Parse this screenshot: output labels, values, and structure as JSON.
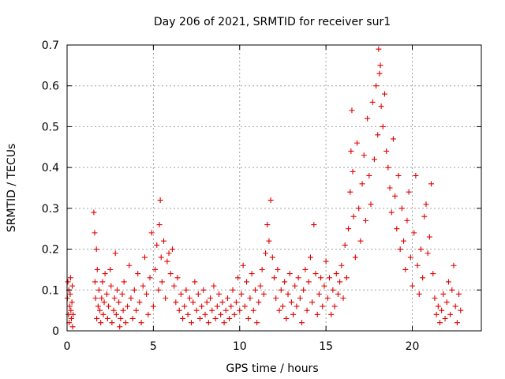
{
  "chart_data": {
    "type": "scatter",
    "title": "Day 206 of 2021, SRMTID for receiver sur1",
    "xlabel": "GPS time / hours",
    "ylabel": "SRMTID / TECUs",
    "xlim": [
      0,
      24
    ],
    "ylim": [
      0,
      0.7
    ],
    "xticks": [
      0,
      5,
      10,
      15,
      20
    ],
    "xtick_labels": [
      "0",
      "5",
      "10",
      "15",
      "20"
    ],
    "yticks": [
      0,
      0.1,
      0.2,
      0.3,
      0.4,
      0.5,
      0.6,
      0.7
    ],
    "ytick_labels": [
      "0",
      "0.1",
      "0.2",
      "0.3",
      "0.4",
      "0.5",
      "0.6",
      "0.7"
    ],
    "grid": true,
    "marker": "plus",
    "series": [
      {
        "name": "sur1",
        "color": "#e00000",
        "points": [
          [
            0.02,
            0.08
          ],
          [
            0.05,
            0.12
          ],
          [
            0.08,
            0.04
          ],
          [
            0.1,
            0.1
          ],
          [
            0.12,
            0.02
          ],
          [
            0.15,
            0.06
          ],
          [
            0.18,
            0.09
          ],
          [
            0.2,
            0.13
          ],
          [
            0.22,
            0.05
          ],
          [
            0.25,
            0.03
          ],
          [
            0.28,
            0.07
          ],
          [
            0.3,
            0.11
          ],
          [
            0.32,
            0.01
          ],
          [
            0.35,
            0.04
          ],
          [
            1.55,
            0.29
          ],
          [
            1.6,
            0.24
          ],
          [
            1.62,
            0.12
          ],
          [
            1.65,
            0.08
          ],
          [
            1.7,
            0.2
          ],
          [
            1.72,
            0.03
          ],
          [
            1.75,
            0.15
          ],
          [
            1.8,
            0.06
          ],
          [
            1.85,
            0.1
          ],
          [
            1.9,
            0.05
          ],
          [
            1.95,
            0.02
          ],
          [
            2.0,
            0.08
          ],
          [
            2.05,
            0.12
          ],
          [
            2.1,
            0.04
          ],
          [
            2.15,
            0.07
          ],
          [
            2.2,
            0.14
          ],
          [
            2.3,
            0.09
          ],
          [
            2.35,
            0.03
          ],
          [
            2.4,
            0.06
          ],
          [
            2.5,
            0.15
          ],
          [
            2.55,
            0.11
          ],
          [
            2.6,
            0.02
          ],
          [
            2.7,
            0.05
          ],
          [
            2.75,
            0.08
          ],
          [
            2.8,
            0.19
          ],
          [
            2.85,
            0.04
          ],
          [
            2.9,
            0.1
          ],
          [
            3.0,
            0.07
          ],
          [
            3.05,
            0.01
          ],
          [
            3.1,
            0.03
          ],
          [
            3.2,
            0.09
          ],
          [
            3.25,
            0.05
          ],
          [
            3.3,
            0.12
          ],
          [
            3.4,
            0.02
          ],
          [
            3.5,
            0.06
          ],
          [
            3.6,
            0.16
          ],
          [
            3.7,
            0.08
          ],
          [
            3.8,
            0.03
          ],
          [
            3.9,
            0.1
          ],
          [
            4.0,
            0.05
          ],
          [
            4.1,
            0.14
          ],
          [
            4.2,
            0.07
          ],
          [
            4.3,
            0.02
          ],
          [
            4.4,
            0.11
          ],
          [
            4.5,
            0.18
          ],
          [
            4.6,
            0.09
          ],
          [
            4.7,
            0.04
          ],
          [
            4.8,
            0.13
          ],
          [
            4.9,
            0.24
          ],
          [
            5.0,
            0.06
          ],
          [
            5.1,
            0.15
          ],
          [
            5.2,
            0.21
          ],
          [
            5.3,
            0.1
          ],
          [
            5.35,
            0.26
          ],
          [
            5.4,
            0.32
          ],
          [
            5.45,
            0.18
          ],
          [
            5.5,
            0.12
          ],
          [
            5.6,
            0.22
          ],
          [
            5.7,
            0.08
          ],
          [
            5.8,
            0.17
          ],
          [
            5.9,
            0.19
          ],
          [
            6.0,
            0.14
          ],
          [
            6.1,
            0.2
          ],
          [
            6.2,
            0.11
          ],
          [
            6.3,
            0.07
          ],
          [
            6.4,
            0.13
          ],
          [
            6.5,
            0.05
          ],
          [
            6.6,
            0.09
          ],
          [
            6.7,
            0.03
          ],
          [
            6.8,
            0.06
          ],
          [
            6.9,
            0.1
          ],
          [
            7.0,
            0.04
          ],
          [
            7.1,
            0.08
          ],
          [
            7.2,
            0.02
          ],
          [
            7.3,
            0.07
          ],
          [
            7.4,
            0.12
          ],
          [
            7.5,
            0.05
          ],
          [
            7.6,
            0.09
          ],
          [
            7.7,
            0.03
          ],
          [
            7.8,
            0.06
          ],
          [
            7.9,
            0.1
          ],
          [
            8.0,
            0.04
          ],
          [
            8.1,
            0.07
          ],
          [
            8.2,
            0.02
          ],
          [
            8.3,
            0.08
          ],
          [
            8.4,
            0.05
          ],
          [
            8.5,
            0.11
          ],
          [
            8.6,
            0.03
          ],
          [
            8.7,
            0.06
          ],
          [
            8.8,
            0.09
          ],
          [
            8.9,
            0.04
          ],
          [
            9.0,
            0.07
          ],
          [
            9.1,
            0.02
          ],
          [
            9.2,
            0.05
          ],
          [
            9.3,
            0.08
          ],
          [
            9.4,
            0.03
          ],
          [
            9.5,
            0.06
          ],
          [
            9.6,
            0.1
          ],
          [
            9.7,
            0.04
          ],
          [
            9.8,
            0.07
          ],
          [
            9.9,
            0.13
          ],
          [
            10.0,
            0.05
          ],
          [
            10.1,
            0.09
          ],
          [
            10.2,
            0.16
          ],
          [
            10.3,
            0.06
          ],
          [
            10.4,
            0.12
          ],
          [
            10.5,
            0.03
          ],
          [
            10.6,
            0.08
          ],
          [
            10.7,
            0.14
          ],
          [
            10.8,
            0.05
          ],
          [
            10.9,
            0.1
          ],
          [
            11.0,
            0.02
          ],
          [
            11.1,
            0.07
          ],
          [
            11.2,
            0.11
          ],
          [
            11.3,
            0.15
          ],
          [
            11.4,
            0.09
          ],
          [
            11.5,
            0.19
          ],
          [
            11.6,
            0.26
          ],
          [
            11.7,
            0.22
          ],
          [
            11.8,
            0.32
          ],
          [
            11.9,
            0.18
          ],
          [
            12.0,
            0.13
          ],
          [
            12.1,
            0.08
          ],
          [
            12.2,
            0.15
          ],
          [
            12.3,
            0.05
          ],
          [
            12.4,
            0.1
          ],
          [
            12.5,
            0.06
          ],
          [
            12.6,
            0.12
          ],
          [
            12.7,
            0.03
          ],
          [
            12.8,
            0.09
          ],
          [
            12.9,
            0.14
          ],
          [
            13.0,
            0.07
          ],
          [
            13.1,
            0.04
          ],
          [
            13.2,
            0.11
          ],
          [
            13.3,
            0.06
          ],
          [
            13.4,
            0.13
          ],
          [
            13.5,
            0.08
          ],
          [
            13.6,
            0.02
          ],
          [
            13.7,
            0.1
          ],
          [
            13.8,
            0.15
          ],
          [
            13.9,
            0.05
          ],
          [
            14.0,
            0.12
          ],
          [
            14.1,
            0.18
          ],
          [
            14.2,
            0.07
          ],
          [
            14.3,
            0.26
          ],
          [
            14.4,
            0.14
          ],
          [
            14.5,
            0.04
          ],
          [
            14.6,
            0.09
          ],
          [
            14.7,
            0.13
          ],
          [
            14.8,
            0.06
          ],
          [
            14.9,
            0.11
          ],
          [
            15.0,
            0.17
          ],
          [
            15.1,
            0.08
          ],
          [
            15.2,
            0.13
          ],
          [
            15.3,
            0.04
          ],
          [
            15.4,
            0.1
          ],
          [
            15.5,
            0.06
          ],
          [
            15.6,
            0.14
          ],
          [
            15.7,
            0.09
          ],
          [
            15.8,
            0.12
          ],
          [
            15.9,
            0.16
          ],
          [
            16.0,
            0.08
          ],
          [
            16.1,
            0.21
          ],
          [
            16.2,
            0.13
          ],
          [
            16.3,
            0.25
          ],
          [
            16.4,
            0.34
          ],
          [
            16.45,
            0.44
          ],
          [
            16.5,
            0.54
          ],
          [
            16.55,
            0.39
          ],
          [
            16.6,
            0.28
          ],
          [
            16.7,
            0.18
          ],
          [
            16.8,
            0.46
          ],
          [
            16.9,
            0.3
          ],
          [
            17.0,
            0.22
          ],
          [
            17.1,
            0.36
          ],
          [
            17.2,
            0.43
          ],
          [
            17.3,
            0.27
          ],
          [
            17.4,
            0.52
          ],
          [
            17.5,
            0.38
          ],
          [
            17.6,
            0.31
          ],
          [
            17.7,
            0.56
          ],
          [
            17.8,
            0.42
          ],
          [
            17.9,
            0.6
          ],
          [
            18.0,
            0.48
          ],
          [
            18.05,
            0.69
          ],
          [
            18.1,
            0.63
          ],
          [
            18.15,
            0.65
          ],
          [
            18.2,
            0.55
          ],
          [
            18.3,
            0.5
          ],
          [
            18.4,
            0.58
          ],
          [
            18.5,
            0.44
          ],
          [
            18.6,
            0.4
          ],
          [
            18.7,
            0.35
          ],
          [
            18.8,
            0.29
          ],
          [
            18.9,
            0.47
          ],
          [
            19.0,
            0.33
          ],
          [
            19.1,
            0.25
          ],
          [
            19.2,
            0.38
          ],
          [
            19.3,
            0.2
          ],
          [
            19.4,
            0.3
          ],
          [
            19.5,
            0.22
          ],
          [
            19.6,
            0.15
          ],
          [
            19.7,
            0.27
          ],
          [
            19.8,
            0.34
          ],
          [
            19.9,
            0.18
          ],
          [
            20.0,
            0.11
          ],
          [
            20.1,
            0.24
          ],
          [
            20.2,
            0.38
          ],
          [
            20.3,
            0.16
          ],
          [
            20.4,
            0.09
          ],
          [
            20.5,
            0.2
          ],
          [
            20.6,
            0.13
          ],
          [
            20.7,
            0.28
          ],
          [
            20.8,
            0.31
          ],
          [
            20.9,
            0.19
          ],
          [
            21.0,
            0.23
          ],
          [
            21.1,
            0.36
          ],
          [
            21.2,
            0.14
          ],
          [
            21.3,
            0.08
          ],
          [
            21.4,
            0.04
          ],
          [
            21.5,
            0.06
          ],
          [
            21.6,
            0.02
          ],
          [
            21.7,
            0.05
          ],
          [
            21.8,
            0.09
          ],
          [
            21.9,
            0.03
          ],
          [
            22.0,
            0.07
          ],
          [
            22.1,
            0.12
          ],
          [
            22.2,
            0.04
          ],
          [
            22.3,
            0.1
          ],
          [
            22.4,
            0.16
          ],
          [
            22.5,
            0.06
          ],
          [
            22.6,
            0.02
          ],
          [
            22.7,
            0.09
          ],
          [
            22.8,
            0.05
          ]
        ]
      }
    ]
  }
}
